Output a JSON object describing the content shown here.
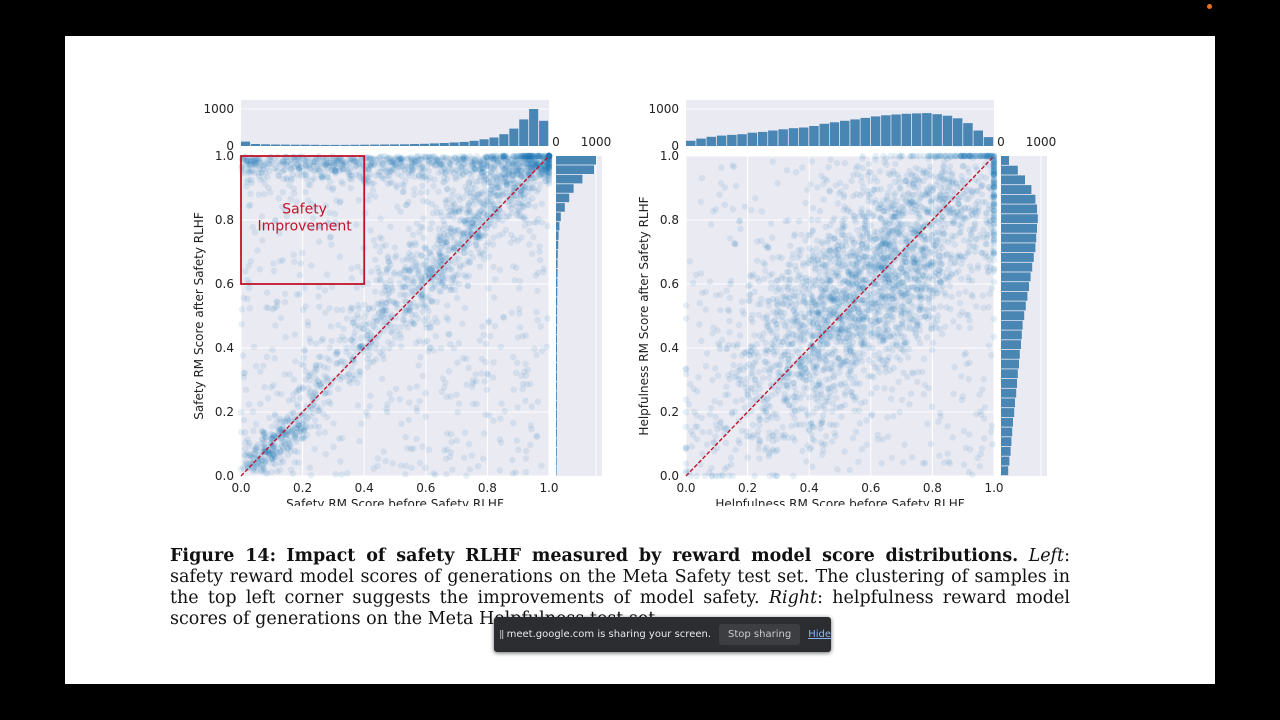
{
  "screen_share": {
    "message": "meet.google.com is sharing your screen.",
    "stop_label": "Stop sharing",
    "hide_label": "Hide",
    "pause_glyph": "||"
  },
  "caption": {
    "label": "Figure 14:",
    "title": "Impact of safety RLHF measured by reward model score distributions.",
    "left_word": "Left",
    "left_text": ": safety reward model scores of generations on the Meta Safety test set. The clustering of samples in the top left corner suggests the improvements of model safety.",
    "right_word": "Right",
    "right_text": ": helpfulness reward model scores of generations on the Meta Helpfulness test set."
  },
  "colors": {
    "point": "#1f77b4",
    "bar": "#4a86b3",
    "diagonal": "#c0142a",
    "annotation": "#c0142a",
    "panel_bg": "#eaeaf2",
    "recording_dot": "#e8731a"
  },
  "chart_data": [
    {
      "type": "scatter",
      "xlabel": "Safety RM Score before Safety RLHF",
      "ylabel": "Safety RM Score after Safety RLHF",
      "xlim": [
        0,
        1
      ],
      "ylim": [
        0,
        1
      ],
      "x_ticks": [
        "0.0",
        "0.2",
        "0.4",
        "0.6",
        "0.8",
        "1.0"
      ],
      "y_ticks": [
        "0.0",
        "0.2",
        "0.4",
        "0.6",
        "0.8",
        "1.0"
      ],
      "grid": true,
      "diagonal": true,
      "annotation_box": {
        "x": [
          0.0,
          0.4
        ],
        "y": [
          0.6,
          1.0
        ],
        "label_line1": "Safety",
        "label_line2": "Improvement"
      },
      "marginal_x": {
        "tick_top": "1000",
        "tick_bottom": "0",
        "max": 1000,
        "counts": [
          120,
          55,
          45,
          40,
          38,
          35,
          35,
          32,
          30,
          30,
          30,
          32,
          35,
          38,
          40,
          42,
          45,
          55,
          60,
          70,
          80,
          95,
          110,
          140,
          180,
          230,
          320,
          470,
          720,
          1000,
          680
        ]
      },
      "marginal_y": {
        "tick_left": "0",
        "tick_right": "1000",
        "max": 1000,
        "counts": [
          15,
          18,
          20,
          20,
          22,
          22,
          22,
          22,
          22,
          22,
          25,
          25,
          25,
          25,
          25,
          25,
          28,
          28,
          30,
          32,
          35,
          38,
          40,
          45,
          55,
          65,
          85,
          120,
          220,
          330,
          440,
          660,
          950,
          1000
        ]
      },
      "points": {
        "description_clusters": "dense top-right near diagonal, band along y≈1, sparse bottom-left",
        "counts": {
          "uniform": 600,
          "diagonal": 1100,
          "top_band": 750,
          "low_corner": 250
        }
      }
    },
    {
      "type": "scatter",
      "xlabel": "Helpfulness RM Score before Safety RLHF",
      "ylabel": "Helpfulness RM Score after Safety RLHF",
      "xlim": [
        0,
        1
      ],
      "ylim": [
        0,
        1
      ],
      "x_ticks": [
        "0.0",
        "0.2",
        "0.4",
        "0.6",
        "0.8",
        "1.0"
      ],
      "y_ticks": [
        "0.0",
        "0.2",
        "0.4",
        "0.6",
        "0.8",
        "1.0"
      ],
      "grid": true,
      "diagonal": true,
      "marginal_x": {
        "tick_top": "1000",
        "tick_bottom": "0",
        "max": 1000,
        "counts": [
          140,
          200,
          250,
          280,
          300,
          320,
          360,
          380,
          420,
          450,
          480,
          500,
          540,
          600,
          640,
          680,
          720,
          760,
          800,
          830,
          850,
          870,
          880,
          890,
          860,
          820,
          750,
          620,
          420,
          240
        ]
      },
      "marginal_y": {
        "tick_left": "0",
        "tick_right": "1000",
        "max": 1000,
        "counts": [
          180,
          210,
          240,
          260,
          280,
          300,
          330,
          350,
          380,
          400,
          420,
          450,
          470,
          500,
          520,
          540,
          580,
          620,
          660,
          700,
          740,
          780,
          820,
          860,
          880,
          900,
          920,
          900,
          860,
          760,
          600,
          420,
          200
        ]
      },
      "points": {
        "description_clusters": "broad cloud concentrated along the diagonal",
        "counts": {
          "diagonal": 2600,
          "uniform": 350
        }
      }
    }
  ]
}
